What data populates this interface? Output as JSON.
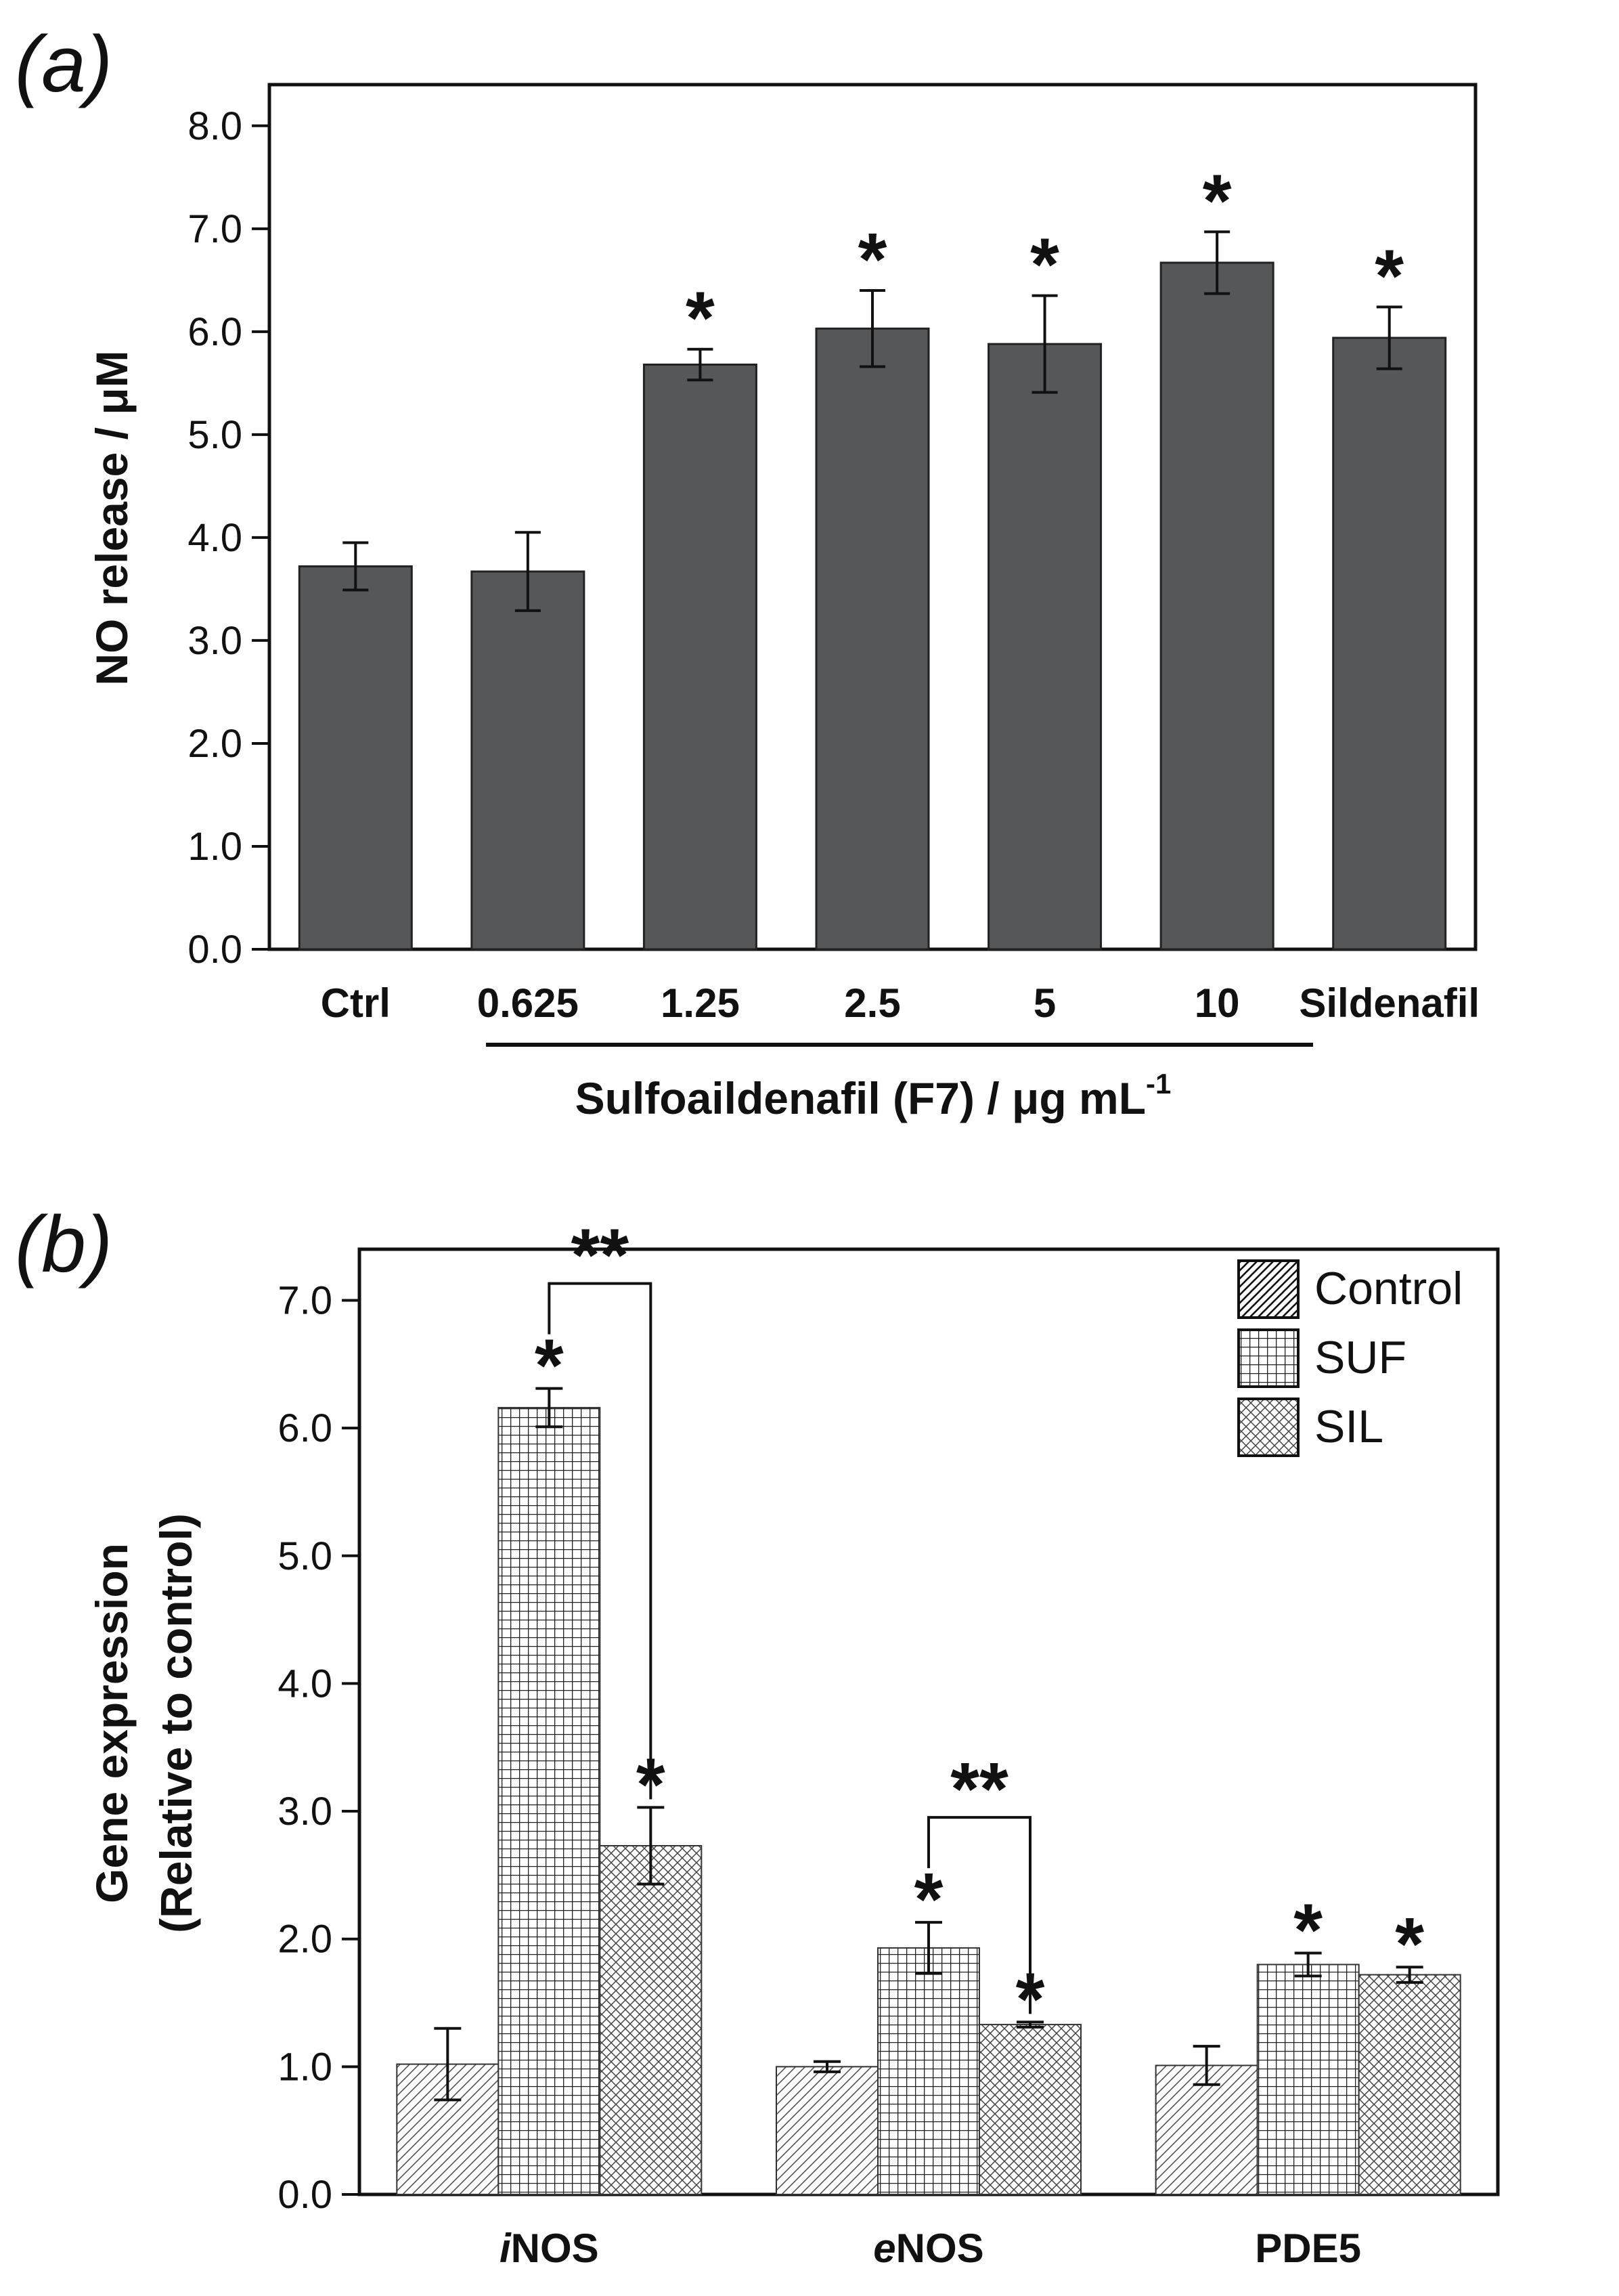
{
  "chart_data": [
    {
      "panel": "(a)",
      "type": "bar",
      "categories": [
        "Ctrl",
        "0.625",
        "1.25",
        "2.5",
        "5",
        "10",
        "Sildenafil"
      ],
      "values": [
        3.72,
        3.67,
        5.68,
        6.03,
        5.88,
        6.67,
        5.94
      ],
      "errors": [
        0.23,
        0.38,
        0.15,
        0.37,
        0.47,
        0.3,
        0.3
      ],
      "significance": [
        "",
        "",
        "*",
        "*",
        "*",
        "*",
        "*"
      ],
      "ylabel": "NO release / μM",
      "xlabel": "Sulfoaildenafil (F7) / μg mL",
      "xlabel_superscript": "-1",
      "ylim": [
        0,
        8.4
      ],
      "yticks": [
        "0.0",
        "1.0",
        "2.0",
        "3.0",
        "4.0",
        "5.0",
        "6.0",
        "7.0",
        "8.0"
      ],
      "bar_color": "#555759"
    },
    {
      "panel": "(b)",
      "type": "bar",
      "categories": [
        "iNOS",
        "eNOS",
        "PDE5"
      ],
      "category_italic_prefix": [
        "i",
        "e",
        ""
      ],
      "category_rest": [
        "NOS",
        "NOS",
        "PDE5"
      ],
      "series": [
        {
          "name": "Control",
          "pattern": "diagonal",
          "values": [
            1.02,
            1.0,
            1.01
          ],
          "errors": [
            0.28,
            0.04,
            0.15
          ],
          "significance": [
            "",
            "",
            ""
          ]
        },
        {
          "name": "SUF",
          "pattern": "grid",
          "values": [
            6.16,
            1.93,
            1.8
          ],
          "errors": [
            0.15,
            0.2,
            0.09
          ],
          "significance": [
            "*",
            "*",
            "*"
          ]
        },
        {
          "name": "SIL",
          "pattern": "crosshatch",
          "values": [
            2.73,
            1.33,
            1.72
          ],
          "errors": [
            0.3,
            0.02,
            0.06
          ],
          "significance": [
            "*",
            "*",
            "*"
          ]
        }
      ],
      "brackets": [
        {
          "category": "iNOS",
          "from": "SUF",
          "to": "SIL",
          "label": "**"
        },
        {
          "category": "eNOS",
          "from": "SUF",
          "to": "SIL",
          "label": "**"
        }
      ],
      "ylabel_line1": "Gene expression",
      "ylabel_line2": "(Relative to control)",
      "ylim": [
        0,
        7.4
      ],
      "yticks": [
        "0.0",
        "1.0",
        "2.0",
        "3.0",
        "4.0",
        "5.0",
        "6.0",
        "7.0"
      ],
      "legend_position": "top-right"
    }
  ]
}
